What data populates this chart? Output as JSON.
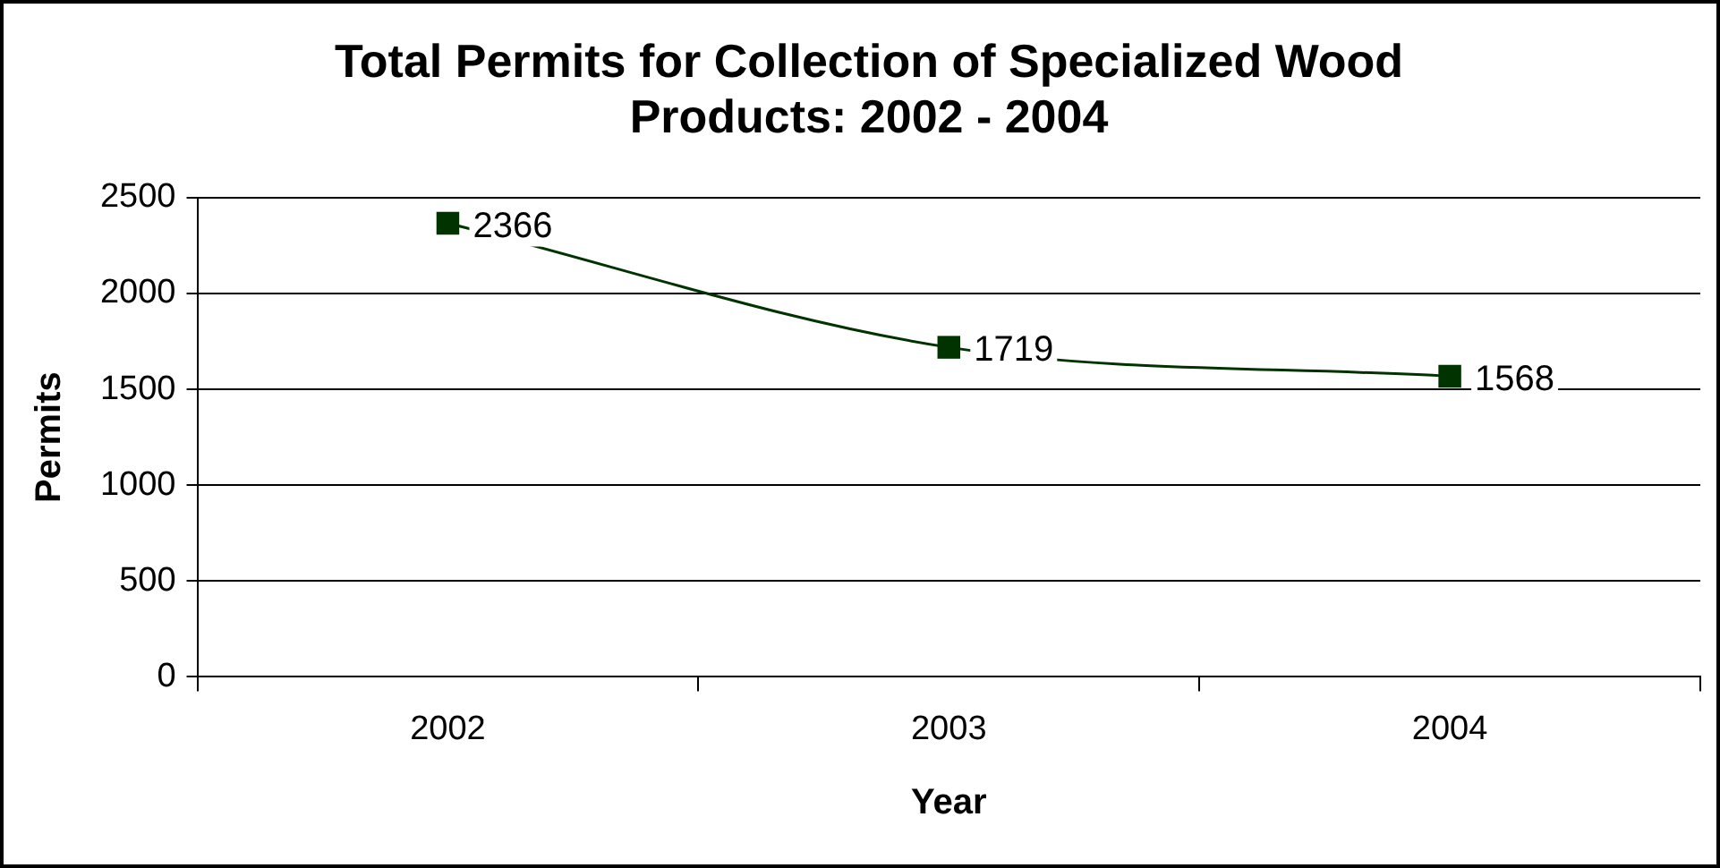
{
  "chart_data": {
    "type": "line",
    "title": [
      "Total Permits for Collection of Specialized Wood",
      "Products: 2002 - 2004"
    ],
    "xlabel": "Year",
    "ylabel": "Permits",
    "categories": [
      "2002",
      "2003",
      "2004"
    ],
    "series": [
      {
        "color": "#003300",
        "values": [
          2366,
          1719,
          1568
        ]
      }
    ],
    "ylim": [
      0,
      2500
    ],
    "yticks": [
      0,
      500,
      1000,
      1500,
      2000,
      2500
    ],
    "grid": "y",
    "legend": false,
    "marker": "square",
    "data_labels": true
  }
}
